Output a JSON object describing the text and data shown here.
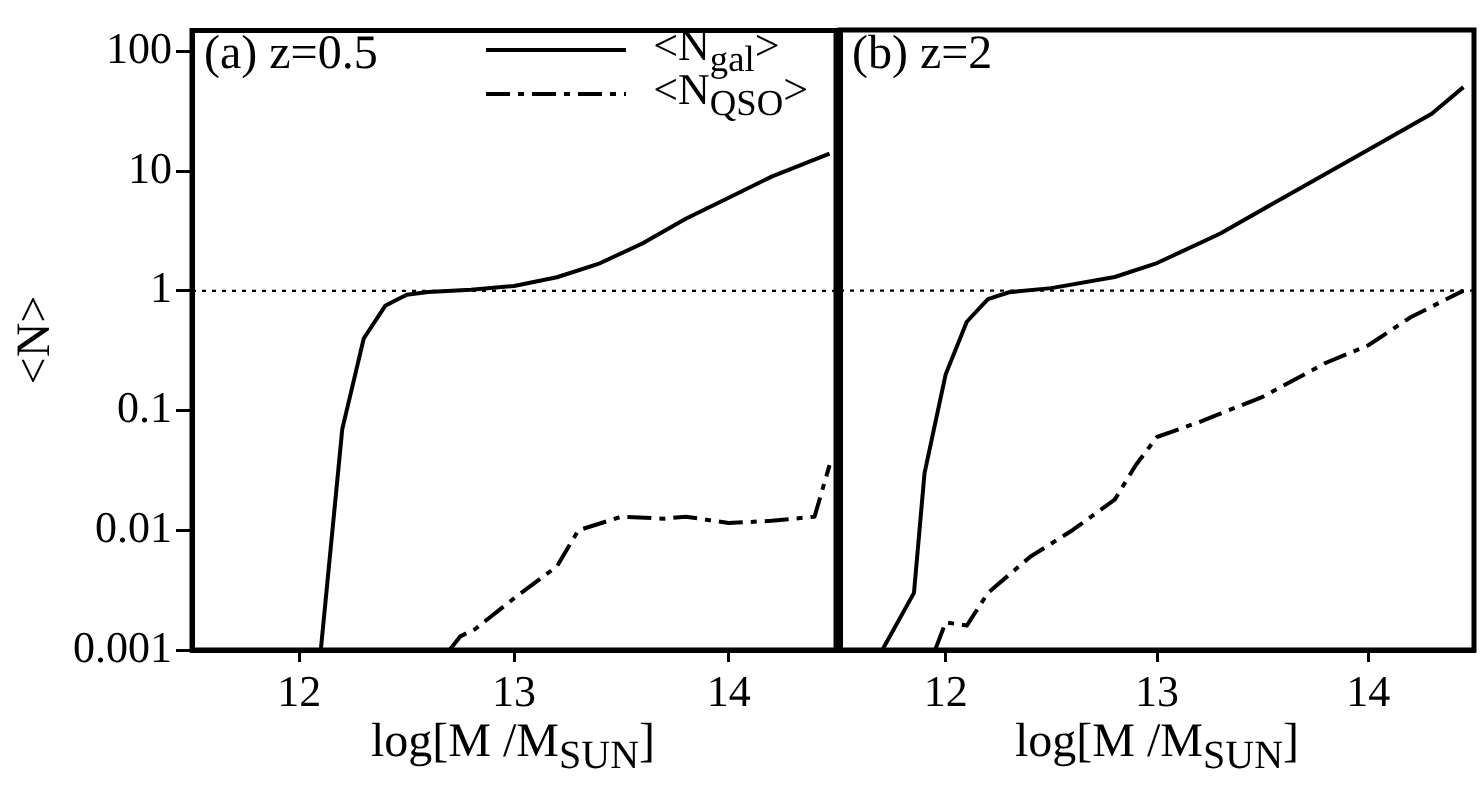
{
  "chart_data": [
    {
      "type": "line",
      "xlabel": "log[M /M$_{SUN}$]",
      "ylabel": "<N>",
      "annotations": [
        "(a) z=0.5"
      ],
      "log": "y",
      "xlim": [
        11.5,
        14.5
      ],
      "xticks": [
        12,
        13,
        14
      ],
      "ylim": [
        0.001,
        150
      ],
      "yticks": [
        0.001,
        0.01,
        0.1,
        1,
        10,
        100
      ],
      "grid": false,
      "legend": "top right",
      "ref_lines": [
        {
          "axis": "y",
          "value": 1,
          "line_style": "dotted"
        }
      ],
      "series": [
        {
          "name": "<N$_{gal}$>",
          "color": "#000000",
          "line_style": "solid",
          "x": [
            12.1,
            12.2,
            12.3,
            12.4,
            12.5,
            12.6,
            12.8,
            13.0,
            13.2,
            13.4,
            13.6,
            13.8,
            14.0,
            14.2,
            14.47
          ],
          "values": [
            0.001,
            0.07,
            0.4,
            0.75,
            0.93,
            0.98,
            1.02,
            1.1,
            1.3,
            1.7,
            2.5,
            4,
            6,
            9,
            14
          ]
        },
        {
          "name": "<N$_{QSO}$>",
          "color": "#000000",
          "line_style": "dashdot",
          "x": [
            12.7,
            12.75,
            12.82,
            13.0,
            13.2,
            13.3,
            13.5,
            13.7,
            13.8,
            14.0,
            14.2,
            14.4,
            14.47
          ],
          "values": [
            0.001,
            0.0013,
            0.0015,
            0.0027,
            0.005,
            0.01,
            0.013,
            0.0125,
            0.013,
            0.0115,
            0.012,
            0.013,
            0.035
          ]
        }
      ]
    },
    {
      "type": "line",
      "xlabel": "log[M /M$_{SUN}$]",
      "annotations": [
        "(b) z=2"
      ],
      "log": "y",
      "xlim": [
        11.5,
        14.5
      ],
      "xticks": [
        12,
        13,
        14
      ],
      "ylim": [
        0.001,
        150
      ],
      "yticks": [
        0.001,
        0.01,
        0.1,
        1,
        10,
        100
      ],
      "tick_labels": "x",
      "grid": false,
      "ref_lines": [
        {
          "axis": "y",
          "value": 1,
          "line_style": "dotted"
        }
      ],
      "series": [
        {
          "color": "#000000",
          "line_style": "solid",
          "x": [
            11.7,
            11.85,
            11.9,
            12.0,
            12.1,
            12.2,
            12.3,
            12.5,
            12.8,
            13.0,
            13.3,
            13.6,
            14.0,
            14.3,
            14.45
          ],
          "values": [
            0.001,
            0.003,
            0.03,
            0.2,
            0.55,
            0.85,
            0.97,
            1.05,
            1.3,
            1.7,
            3,
            6,
            15,
            30,
            50
          ]
        },
        {
          "color": "#000000",
          "line_style": "dashdot",
          "x": [
            11.95,
            12.0,
            12.1,
            12.2,
            12.4,
            12.6,
            12.8,
            12.9,
            13.0,
            13.2,
            13.5,
            13.8,
            14.0,
            14.2,
            14.45
          ],
          "values": [
            0.001,
            0.0017,
            0.0016,
            0.003,
            0.006,
            0.01,
            0.018,
            0.035,
            0.06,
            0.08,
            0.13,
            0.25,
            0.35,
            0.6,
            1.0
          ]
        }
      ]
    }
  ]
}
